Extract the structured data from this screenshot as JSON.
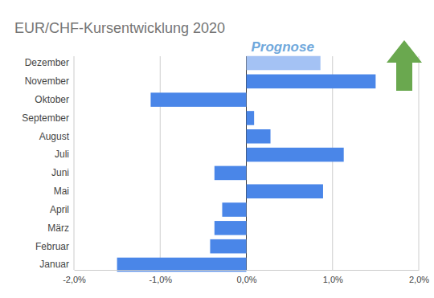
{
  "chart_data": {
    "type": "bar",
    "orientation": "horizontal",
    "title": "EUR/CHF-Kursentwicklung 2020",
    "annotations": [
      "Prognose"
    ],
    "categories": [
      "Januar",
      "Februar",
      "März",
      "April",
      "Mai",
      "Juni",
      "Juli",
      "August",
      "September",
      "Oktober",
      "November",
      "Dezember"
    ],
    "values": [
      -1.5,
      -0.42,
      -0.37,
      -0.28,
      0.89,
      -0.37,
      1.13,
      0.28,
      0.09,
      -1.11,
      1.5,
      0.86
    ],
    "colors": [
      "#4a86e8",
      "#4a86e8",
      "#4a86e8",
      "#4a86e8",
      "#4a86e8",
      "#4a86e8",
      "#4a86e8",
      "#4a86e8",
      "#4a86e8",
      "#4a86e8",
      "#4a86e8",
      "#a4c2f4"
    ],
    "xlim": [
      -2,
      2
    ],
    "xticks": [
      {
        "value": -2,
        "label": "-2,0%"
      },
      {
        "value": -1,
        "label": "-1,0%"
      },
      {
        "value": 0,
        "label": "0,0%"
      },
      {
        "value": 1,
        "label": "1,0%"
      },
      {
        "value": 2,
        "label": "2,0%"
      }
    ],
    "grid": true
  }
}
